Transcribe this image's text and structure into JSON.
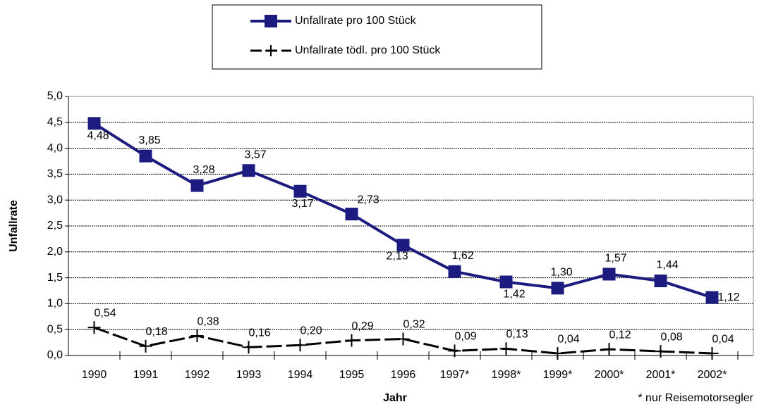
{
  "chart_data": {
    "type": "line",
    "x_label": "Jahr",
    "y_label": "Unfallrate",
    "footnote": "* nur Reisemotorsegler",
    "categories": [
      "1990",
      "1991",
      "1992",
      "1993",
      "1994",
      "1995",
      "1996",
      "1997*",
      "1998*",
      "1999*",
      "2000*",
      "2001*",
      "2002*"
    ],
    "series": [
      {
        "name": "Unfallrate pro 100 Stück",
        "color": "#1c1c80",
        "marker": "square",
        "values": [
          4.48,
          3.85,
          3.28,
          3.57,
          3.17,
          2.73,
          2.13,
          1.62,
          1.42,
          1.3,
          1.57,
          1.44,
          1.12
        ],
        "value_labels": [
          "4,48",
          "3,85",
          "3,28",
          "3,57",
          "3,17",
          "2,73",
          "2,13",
          "1,62",
          "1,42",
          "1,30",
          "1,57",
          "1,44",
          "1,12"
        ]
      },
      {
        "name": "Unfallrate tödl. pro 100 Stück",
        "color": "#000000",
        "marker": "plus",
        "values": [
          0.54,
          0.18,
          0.38,
          0.16,
          0.2,
          0.29,
          0.32,
          0.09,
          0.13,
          0.04,
          0.12,
          0.08,
          0.04
        ],
        "value_labels": [
          "0,54",
          "0,18",
          "0,38",
          "0,16",
          "0,20",
          "0,29",
          "0,32",
          "0,09",
          "0,13",
          "0,04",
          "0,12",
          "0,08",
          "0,04"
        ]
      }
    ],
    "ylim": [
      0,
      5
    ],
    "yticks": [
      {
        "value": 0,
        "label": "0,0"
      },
      {
        "value": 0.5,
        "label": "0,5"
      },
      {
        "value": 1,
        "label": "1,0"
      },
      {
        "value": 1.5,
        "label": "1,5"
      },
      {
        "value": 2,
        "label": "2,0"
      },
      {
        "value": 2.5,
        "label": "2,5"
      },
      {
        "value": 3,
        "label": "3,0"
      },
      {
        "value": 3.5,
        "label": "3,5"
      },
      {
        "value": 4,
        "label": "4,0"
      },
      {
        "value": 4.5,
        "label": "4,5"
      },
      {
        "value": 5,
        "label": "5,0"
      }
    ],
    "grid": true
  }
}
